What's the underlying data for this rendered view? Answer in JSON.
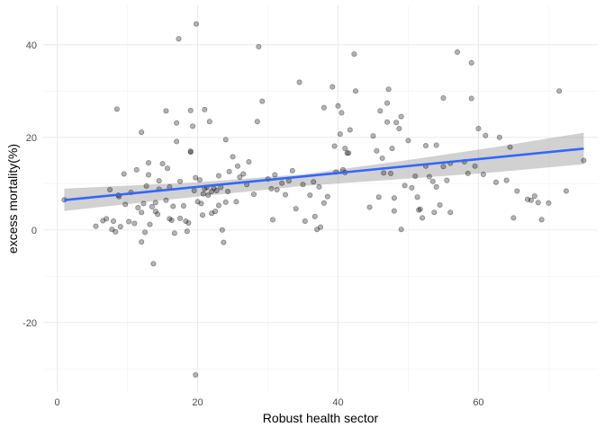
{
  "chart_data": {
    "type": "scatter",
    "title": "",
    "xlabel": "Robust health sector",
    "ylabel": "excess mortality(%)",
    "xlim": [
      -2,
      77
    ],
    "ylim": [
      -35,
      48.5
    ],
    "x_ticks": [
      0,
      20,
      40,
      60
    ],
    "x_tick_labels": [
      "0",
      "20",
      "40",
      "60"
    ],
    "y_ticks": [
      -20,
      0,
      20,
      40
    ],
    "y_tick_labels": [
      "-20",
      "0",
      "20",
      "40"
    ],
    "grid": true,
    "legend": "none",
    "fit": {
      "type": "linear",
      "intercept": 6.3,
      "slope": 0.15,
      "x_range": [
        1,
        75
      ],
      "ci_lower": [
        [
          1,
          4.1
        ],
        [
          20,
          7.2
        ],
        [
          35,
          9.5
        ],
        [
          50,
          11.1
        ],
        [
          62,
          12.4
        ],
        [
          75,
          14.2
        ]
      ],
      "ci_upper": [
        [
          1,
          8.9
        ],
        [
          20,
          10.3
        ],
        [
          35,
          12.0
        ],
        [
          50,
          15.1
        ],
        [
          62,
          17.8
        ],
        [
          75,
          21.0
        ]
      ]
    },
    "points": [
      [
        1,
        6.5
      ],
      [
        5.5,
        0.8
      ],
      [
        6.5,
        2.0
      ],
      [
        7,
        2.4
      ],
      [
        7.5,
        8.7
      ],
      [
        7.8,
        0.1
      ],
      [
        8,
        1.9
      ],
      [
        8.3,
        -0.4
      ],
      [
        8.5,
        26.1
      ],
      [
        8.7,
        7.5
      ],
      [
        8.8,
        7.2
      ],
      [
        9,
        0.7
      ],
      [
        9.5,
        12.1
      ],
      [
        9.7,
        5.5
      ],
      [
        10.2,
        1.8
      ],
      [
        10.5,
        8.1
      ],
      [
        11,
        1.4
      ],
      [
        11.3,
        13.0
      ],
      [
        11.5,
        4.8
      ],
      [
        12,
        3.8
      ],
      [
        12,
        -2.6
      ],
      [
        12,
        21.1
      ],
      [
        12.3,
        5.7
      ],
      [
        12.5,
        -0.5
      ],
      [
        12.7,
        9.5
      ],
      [
        13,
        11.9
      ],
      [
        13,
        14.5
      ],
      [
        13.2,
        1.2
      ],
      [
        13.5,
        5.0
      ],
      [
        13.7,
        -7.3
      ],
      [
        14,
        4.0
      ],
      [
        14,
        5.9
      ],
      [
        14.3,
        3.4
      ],
      [
        14.5,
        10.6
      ],
      [
        14.5,
        8.8
      ],
      [
        15,
        14.3
      ],
      [
        15.5,
        6.4
      ],
      [
        15.5,
        25.7
      ],
      [
        15.7,
        13.3
      ],
      [
        16,
        2.4
      ],
      [
        16,
        9.3
      ],
      [
        16.3,
        2.1
      ],
      [
        16.5,
        5.1
      ],
      [
        16.7,
        -0.7
      ],
      [
        17,
        23.1
      ],
      [
        17,
        19.1
      ],
      [
        17.3,
        41.3
      ],
      [
        17.5,
        10.5
      ],
      [
        17.5,
        2.5
      ],
      [
        18,
        5.2
      ],
      [
        18.3,
        1.9
      ],
      [
        18.5,
        -0.3
      ],
      [
        18.7,
        1.5
      ],
      [
        19,
        25.8
      ],
      [
        19,
        17.0
      ],
      [
        19,
        16.8
      ],
      [
        19.3,
        22.4
      ],
      [
        19.5,
        8.5
      ],
      [
        19.7,
        11.3
      ],
      [
        19.7,
        -31.3
      ],
      [
        19.8,
        44.5
      ],
      [
        20,
        6.1
      ],
      [
        20.3,
        10.8
      ],
      [
        20.5,
        5.7
      ],
      [
        20.7,
        3.2
      ],
      [
        20.8,
        7.8
      ],
      [
        21,
        26.0
      ],
      [
        21,
        8.9
      ],
      [
        21.3,
        9.2
      ],
      [
        21.5,
        7.5
      ],
      [
        21.7,
        23.4
      ],
      [
        22,
        3.6
      ],
      [
        22,
        8.3
      ],
      [
        22.3,
        9.0
      ],
      [
        22.5,
        4.0
      ],
      [
        22.7,
        8.5
      ],
      [
        23,
        11.7
      ],
      [
        23,
        5.3
      ],
      [
        23.3,
        9.2
      ],
      [
        23.5,
        0.0
      ],
      [
        23.7,
        -2.7
      ],
      [
        24,
        19.5
      ],
      [
        24,
        6.0
      ],
      [
        24.3,
        8.3
      ],
      [
        24.5,
        12.6
      ],
      [
        25,
        15.8
      ],
      [
        25.5,
        6.1
      ],
      [
        25.7,
        13.8
      ],
      [
        26,
        11.4
      ],
      [
        26.5,
        12.1
      ],
      [
        27,
        9.8
      ],
      [
        27.3,
        14.7
      ],
      [
        28,
        7.7
      ],
      [
        28.5,
        23.4
      ],
      [
        28.7,
        39.6
      ],
      [
        29.2,
        27.8
      ],
      [
        30,
        11.0
      ],
      [
        30.5,
        8.9
      ],
      [
        30.7,
        2.2
      ],
      [
        31,
        11.9
      ],
      [
        31.3,
        8.7
      ],
      [
        32,
        10.1
      ],
      [
        32.5,
        7.6
      ],
      [
        33,
        10.6
      ],
      [
        33.5,
        12.8
      ],
      [
        34,
        4.6
      ],
      [
        34.5,
        31.9
      ],
      [
        35,
        9.8
      ],
      [
        35.3,
        1.9
      ],
      [
        36,
        7.5
      ],
      [
        36.5,
        10.4
      ],
      [
        36.7,
        2.9
      ],
      [
        37,
        0.1
      ],
      [
        37.3,
        9.3
      ],
      [
        37.5,
        0.6
      ],
      [
        38,
        5.8
      ],
      [
        38,
        26.4
      ],
      [
        38.5,
        7.2
      ],
      [
        39.2,
        30.9
      ],
      [
        39.5,
        18.1
      ],
      [
        39.7,
        12.5
      ],
      [
        40,
        26.8
      ],
      [
        40.3,
        20.7
      ],
      [
        40.5,
        25.3
      ],
      [
        40.7,
        13.0
      ],
      [
        41,
        17.6
      ],
      [
        41,
        12.4
      ],
      [
        41.3,
        16.6
      ],
      [
        41.5,
        16.6
      ],
      [
        41.7,
        21.6
      ],
      [
        42.3,
        38.0
      ],
      [
        42.5,
        30.0
      ],
      [
        44.5,
        4.9
      ],
      [
        45,
        20.3
      ],
      [
        45.5,
        17.1
      ],
      [
        45.8,
        7.1
      ],
      [
        46,
        25.7
      ],
      [
        46.3,
        15.5
      ],
      [
        46.5,
        12.3
      ],
      [
        47,
        27.4
      ],
      [
        47,
        23.3
      ],
      [
        47.2,
        30.4
      ],
      [
        47.5,
        12.2
      ],
      [
        47.7,
        17.6
      ],
      [
        48,
        6.9
      ],
      [
        48,
        4.1
      ],
      [
        48.3,
        23.2
      ],
      [
        48.7,
        21.9
      ],
      [
        49,
        24.5
      ],
      [
        49,
        0.1
      ],
      [
        49.5,
        9.6
      ],
      [
        50,
        19.3
      ],
      [
        50.5,
        9.1
      ],
      [
        51,
        11.6
      ],
      [
        51.3,
        7.1
      ],
      [
        51.5,
        4.3
      ],
      [
        51.7,
        4.5
      ],
      [
        52,
        2.6
      ],
      [
        52.5,
        13.8
      ],
      [
        52.5,
        18.2
      ],
      [
        53,
        11.5
      ],
      [
        53.5,
        10.5
      ],
      [
        53.7,
        3.8
      ],
      [
        54,
        18.3
      ],
      [
        54,
        9.3
      ],
      [
        54.5,
        5.4
      ],
      [
        55,
        28.5
      ],
      [
        55,
        13.7
      ],
      [
        55.5,
        10.7
      ],
      [
        56,
        14.4
      ],
      [
        56,
        3.8
      ],
      [
        57,
        38.4
      ],
      [
        58,
        14.7
      ],
      [
        58.5,
        12.2
      ],
      [
        59,
        36.1
      ],
      [
        59,
        28.4
      ],
      [
        59.5,
        13.8
      ],
      [
        60,
        21.9
      ],
      [
        60.7,
        12.0
      ],
      [
        61,
        20.4
      ],
      [
        62.5,
        10.3
      ],
      [
        63,
        20.0
      ],
      [
        64,
        10.7
      ],
      [
        64.5,
        17.9
      ],
      [
        65,
        2.6
      ],
      [
        65.5,
        8.4
      ],
      [
        67,
        6.6
      ],
      [
        67.5,
        6.4
      ],
      [
        68,
        7.3
      ],
      [
        68.5,
        5.9
      ],
      [
        69,
        2.2
      ],
      [
        70,
        5.8
      ],
      [
        71.5,
        30.0
      ],
      [
        72.5,
        8.4
      ],
      [
        75,
        15.0
      ]
    ]
  }
}
